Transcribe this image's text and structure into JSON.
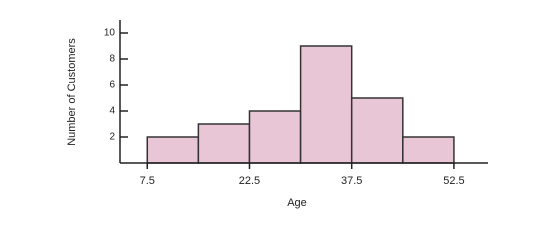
{
  "chart_data": {
    "type": "histogram",
    "bins": [
      7.5,
      15,
      22.5,
      30,
      37.5,
      45,
      52.5
    ],
    "values": [
      2,
      3,
      4,
      9,
      5,
      2
    ],
    "color": "#e9c6d6",
    "xlabel": "Age",
    "ylabel": "Number of Customers",
    "xlim": [
      3.5,
      57.5
    ],
    "ylim": [
      0,
      11
    ],
    "xticks": [
      7.5,
      22.5,
      37.5,
      52.5
    ],
    "yticks": [
      2,
      4,
      6,
      8,
      10
    ]
  }
}
